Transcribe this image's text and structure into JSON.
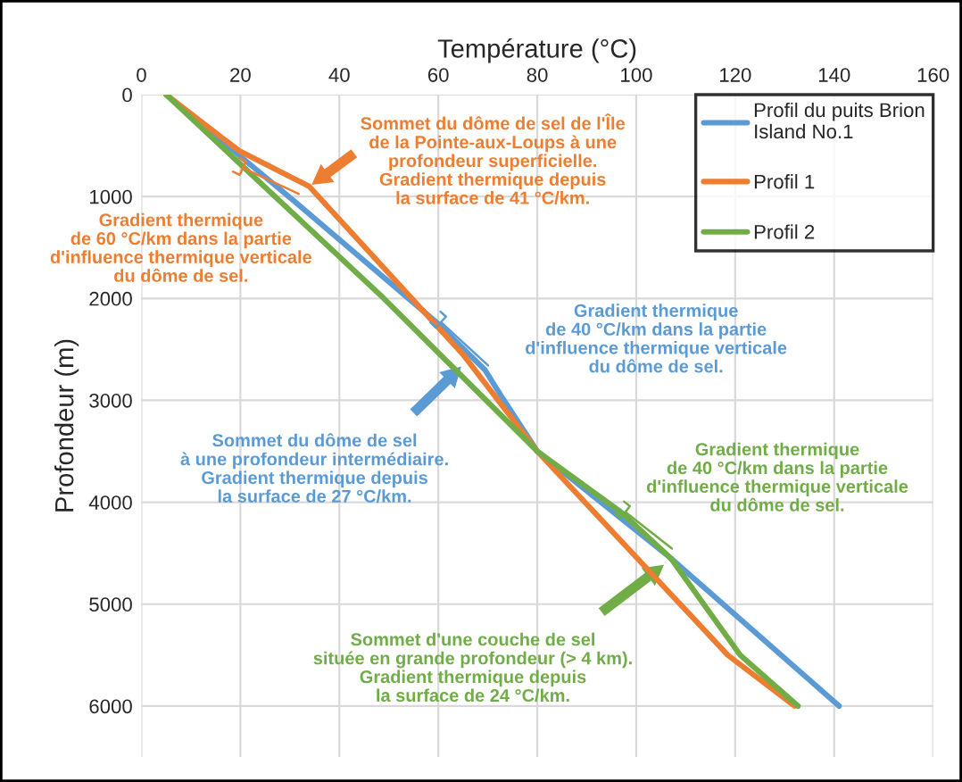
{
  "chart_data": {
    "type": "line",
    "xlabel": "Température (°C)",
    "ylabel": "Profondeur (m)",
    "xlim": [
      0,
      160
    ],
    "xticks": [
      0,
      20,
      40,
      60,
      80,
      100,
      120,
      140,
      160
    ],
    "ylim": [
      6500,
      0
    ],
    "yticks": [
      0,
      1000,
      2000,
      3000,
      4000,
      5000,
      6000
    ],
    "grid": true,
    "legend": "top right",
    "marker": "none",
    "line_style": "solid",
    "series": [
      {
        "name": "Profil du puits Brion\nIsland No.1",
        "color": "#5b9bd5",
        "x": [
          5,
          31,
          60,
          69.4,
          72.6,
          80,
          107,
          141
        ],
        "values": [
          0,
          1050,
          2250,
          2700,
          2950,
          3500,
          4550,
          6000
        ]
      },
      {
        "name": "Profil 1",
        "color": "#ed7d31",
        "x": [
          5,
          19.7,
          33.9,
          65,
          80,
          118.5,
          132
        ],
        "values": [
          0,
          550,
          900,
          2550,
          3500,
          5500,
          6000
        ]
      },
      {
        "name": "Profil 2",
        "color": "#70ad47",
        "x": [
          5,
          49,
          80,
          97,
          107,
          121,
          132.7
        ],
        "values": [
          0,
          2000,
          3500,
          4100,
          4550,
          5500,
          6000
        ]
      }
    ],
    "annotations": [
      {
        "text": "Sommet du dôme de sel de l'Île\nde la Pointe-aux-Loups à une\nprofondeur superficielle.\nGradient thermique depuis\nla surface de 41 °C/km.",
        "x": 34,
        "y": 900
      },
      {
        "text": "Gradient thermique\nde 60 °C/km dans la partie\nd'influence thermique verticale\ndu dôme de sel.",
        "x": 27,
        "y": 750
      },
      "Gradient thermique\nde 40 °C/km dans la partie\nd'influence thermique verticale\ndu dôme de sel.",
      "Sommet du dôme de sel\nà une profondeur intermédiaire.\nGradient thermique depuis\nla surface de 27 °C/km.",
      {
        "text": "Gradient thermique\nde 40 °C/km dans la partie\nd'influence thermique verticale\ndu dôme de sel.",
        "x": 102,
        "y": 4300
      },
      "Sommet d'une couche de sel\nsituée en grande profondeur (> 4 km).\nGradient thermique depuis\nla surface de 24 °C/km."
    ]
  }
}
